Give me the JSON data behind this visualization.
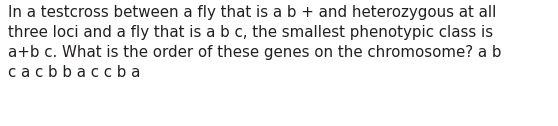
{
  "text": "In a testcross between a fly that is a b + and heterozygous at all\nthree loci and a fly that is a b c, the smallest phenotypic class is\na+b c. What is the order of these genes on the chromosome? a b\nc a c b b a c c b a",
  "background_color": "#ffffff",
  "text_color": "#231f20",
  "font_size": 10.8,
  "fig_width": 5.58,
  "fig_height": 1.26,
  "dpi": 100
}
